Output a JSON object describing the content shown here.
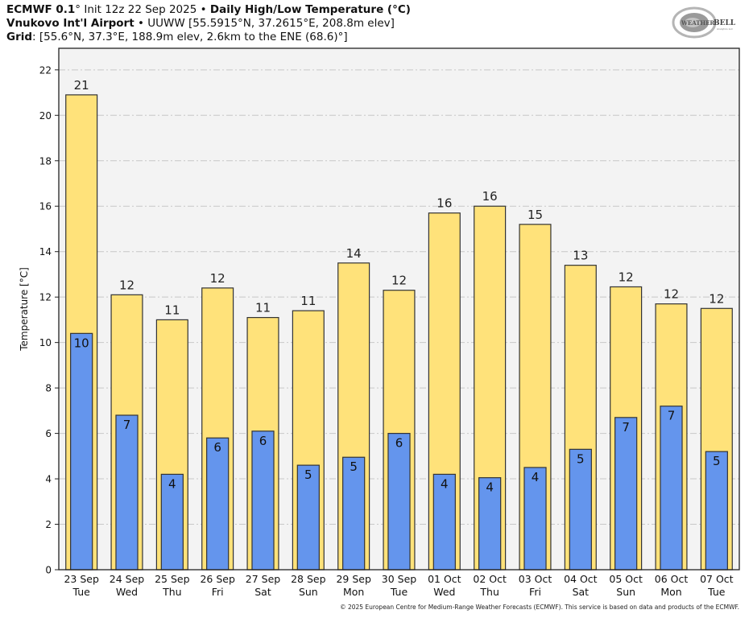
{
  "header": {
    "line1": {
      "model": "ECMWF 0.1",
      "deg": "°",
      "init": " Init 12z 22 Sep 2025 • ",
      "product": "Daily High/Low Temperature (°C)"
    },
    "line2": {
      "station": "Vnukovo Int'l Airport",
      "details": " • UUWW [55.5915°N, 37.2615°E, 208.8m elev]"
    },
    "line3": {
      "label": "Grid",
      "details": ": [55.6°N, 37.3°E, 188.9m elev, 2.6km to the ENE (68.6)°]"
    }
  },
  "logo": {
    "text_main": "WEATHER",
    "text_bell": "BELL",
    "text_sub": "Analytics LLC"
  },
  "footer": "© 2025 European Centre for Medium-Range Weather Forecasts (ECMWF). This service is based on data and products of the ECMWF.",
  "colors": {
    "high": "#FFE27A",
    "low": "#6495ED",
    "plot_bg": "#F3F3F3",
    "grid": "#C8C8C8",
    "edge": "#333333"
  },
  "chart_data": {
    "type": "bar",
    "title": "Daily High/Low Temperature (°C)",
    "xlabel": "",
    "ylabel": "Temperature [°C]",
    "ylim": [
      0,
      22.95
    ],
    "yticks": [
      0,
      2,
      4,
      6,
      8,
      10,
      12,
      14,
      16,
      18,
      20,
      22
    ],
    "grid": true,
    "categories": [
      {
        "date": "23 Sep",
        "day": "Tue"
      },
      {
        "date": "24 Sep",
        "day": "Wed"
      },
      {
        "date": "25 Sep",
        "day": "Thu"
      },
      {
        "date": "26 Sep",
        "day": "Fri"
      },
      {
        "date": "27 Sep",
        "day": "Sat"
      },
      {
        "date": "28 Sep",
        "day": "Sun"
      },
      {
        "date": "29 Sep",
        "day": "Mon"
      },
      {
        "date": "30 Sep",
        "day": "Tue"
      },
      {
        "date": "01 Oct",
        "day": "Wed"
      },
      {
        "date": "02 Oct",
        "day": "Thu"
      },
      {
        "date": "03 Oct",
        "day": "Fri"
      },
      {
        "date": "04 Oct",
        "day": "Sat"
      },
      {
        "date": "05 Oct",
        "day": "Sun"
      },
      {
        "date": "06 Oct",
        "day": "Mon"
      },
      {
        "date": "07 Oct",
        "day": "Tue"
      }
    ],
    "series": [
      {
        "name": "High",
        "values": [
          20.9,
          12.1,
          11.0,
          12.4,
          11.1,
          11.4,
          13.5,
          12.3,
          15.7,
          16.0,
          15.2,
          13.4,
          12.45,
          11.7,
          11.5
        ],
        "labels": [
          "21",
          "12",
          "11",
          "12",
          "11",
          "11",
          "14",
          "12",
          "16",
          "16",
          "15",
          "13",
          "12",
          "12",
          "12"
        ]
      },
      {
        "name": "Low",
        "values": [
          10.4,
          6.8,
          4.2,
          5.8,
          6.1,
          4.6,
          4.95,
          6.0,
          4.2,
          4.05,
          4.5,
          5.3,
          6.7,
          7.2,
          5.2
        ],
        "labels": [
          "10",
          "7",
          "4",
          "6",
          "6",
          "5",
          "5",
          "6",
          "4",
          "4",
          "4",
          "5",
          "7",
          "7",
          "5"
        ]
      }
    ]
  }
}
